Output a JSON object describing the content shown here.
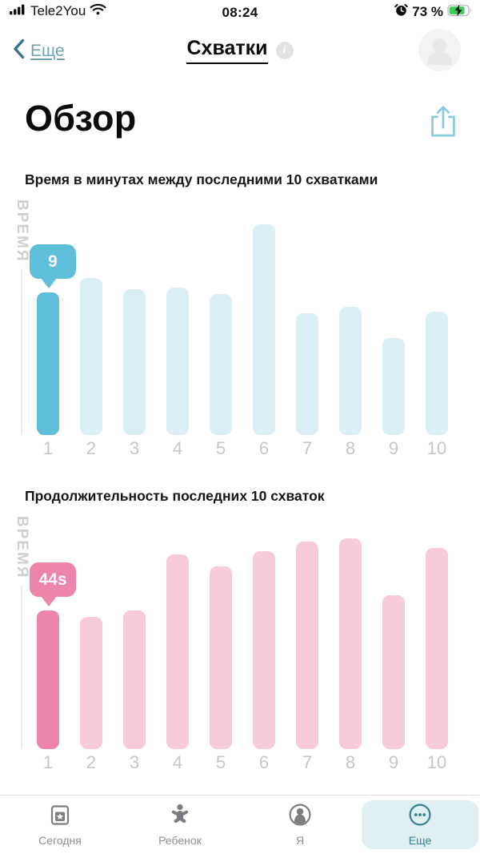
{
  "status_bar": {
    "carrier": "Tele2You",
    "time": "08:24",
    "battery_percent": "73 %",
    "icons": [
      "signal-icon",
      "wifi-icon",
      "alarm-icon",
      "battery-charging-icon"
    ]
  },
  "nav": {
    "back_label": "Еще",
    "title": "Схватки",
    "info_glyph": "i",
    "icons": [
      "back-chevron-icon",
      "info-icon",
      "avatar"
    ]
  },
  "overview": {
    "heading": "Обзор",
    "share_icon": "share-icon"
  },
  "chart_data": [
    {
      "type": "bar",
      "title": "Время в минутах между последними 10 схватками",
      "ylabel": "ВРЕМЯ",
      "xlabel": "",
      "categories": [
        "1",
        "2",
        "3",
        "4",
        "5",
        "6",
        "7",
        "8",
        "9",
        "10"
      ],
      "values": [
        9,
        9.9,
        9.2,
        9.3,
        8.9,
        13.3,
        7.7,
        8.1,
        6.1,
        7.8
      ],
      "unit": "minutes",
      "callout": {
        "bar_index": 0,
        "label": "9"
      },
      "highlight_color": "#5FBFDA",
      "bar_color": "#DDEFF6",
      "grid": false,
      "legend": false
    },
    {
      "type": "bar",
      "title": "Продолжительность последних 10 схваток",
      "ylabel": "ВРЕМЯ",
      "xlabel": "",
      "categories": [
        "1",
        "2",
        "3",
        "4",
        "5",
        "6",
        "7",
        "8",
        "9",
        "10"
      ],
      "values": [
        44,
        42,
        44,
        62,
        58,
        63,
        66,
        67,
        49,
        64
      ],
      "unit": "seconds",
      "callout": {
        "bar_index": 0,
        "label": "44s"
      },
      "highlight_color": "#EC84AC",
      "bar_color": "#F7CBDC",
      "grid": false,
      "legend": false
    }
  ],
  "tab_bar": {
    "items": [
      {
        "label": "Сегодня",
        "icon": "calendar-icon",
        "selected": false
      },
      {
        "label": "Ребенок",
        "icon": "baby-icon",
        "selected": false
      },
      {
        "label": "Я",
        "icon": "profile-icon",
        "selected": false
      },
      {
        "label": "Еще",
        "icon": "more-icon",
        "selected": true
      }
    ],
    "selected_color": "#35818F",
    "selected_bg": "#DFEFF2"
  }
}
